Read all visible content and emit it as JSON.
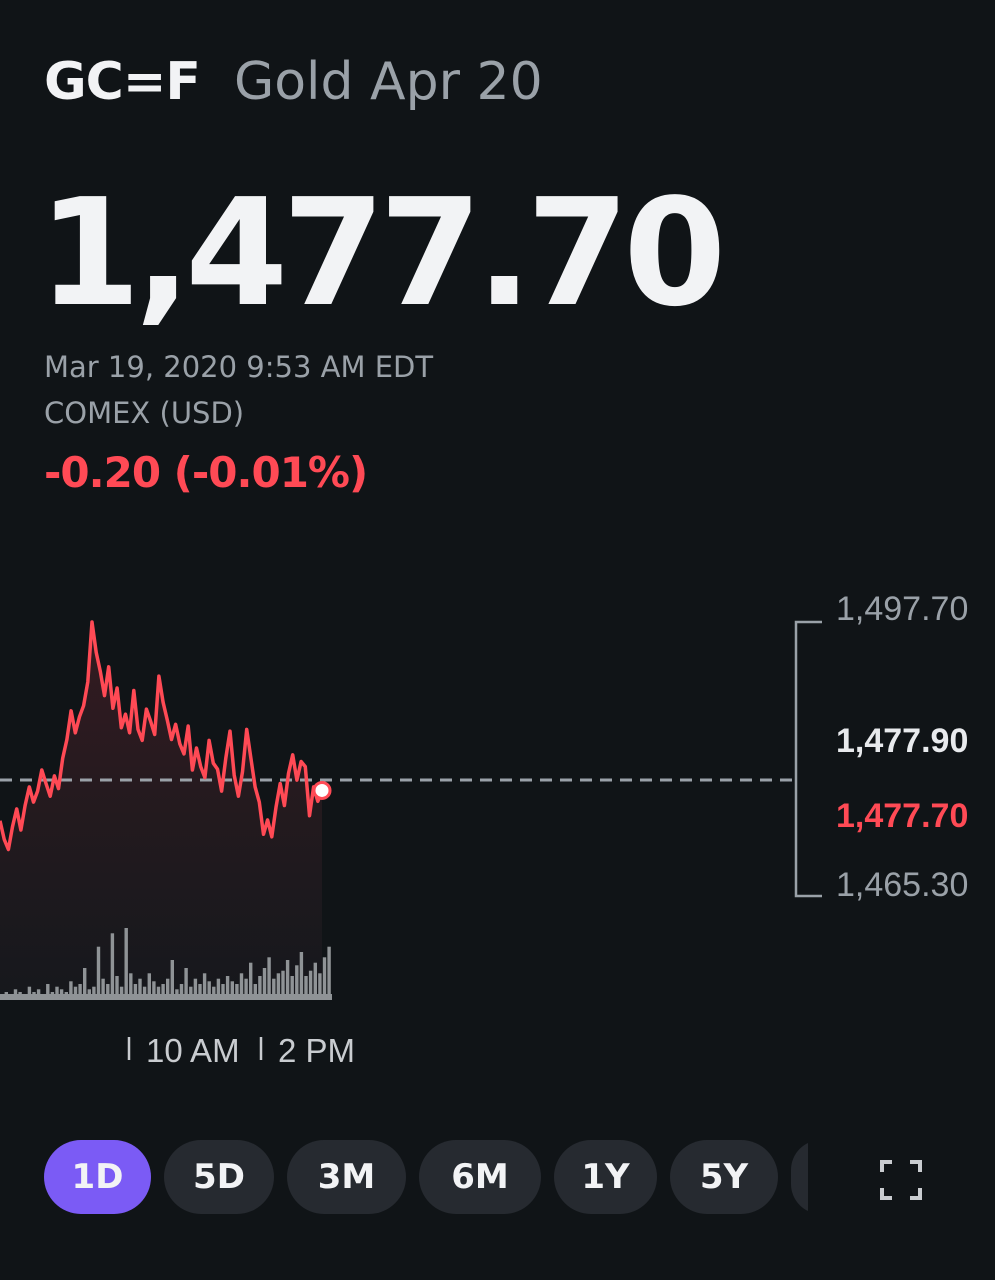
{
  "quote": {
    "symbol": "GC=F",
    "name": "Gold Apr 20",
    "price": "1,477.70",
    "timestamp": "Mar 19, 2020 9:53 AM EDT",
    "exchange": "COMEX (USD)",
    "change": "-0.20 (-0.01%)"
  },
  "chart": {
    "y_labels": {
      "high": "1,497.70",
      "prev_close": "1,477.90",
      "current": "1,477.70",
      "low": "1,465.30"
    },
    "x_labels": [
      "10 AM",
      "2 PM"
    ]
  },
  "chart_data": {
    "type": "line",
    "ylim": [
      1465.3,
      1497.7
    ],
    "reference_line": 1477.9,
    "series": [
      {
        "values": [
          1474.2,
          1472.0,
          1470.8,
          1473.5,
          1475.6,
          1473.1,
          1476.0,
          1478.2,
          1476.4,
          1477.7,
          1480.2,
          1478.6,
          1477.1,
          1479.5,
          1478.0,
          1481.6,
          1483.8,
          1487.2,
          1484.6,
          1486.5,
          1487.8,
          1490.6,
          1497.7,
          1494.1,
          1491.8,
          1489.0,
          1492.4,
          1487.5,
          1489.9,
          1485.2,
          1486.8,
          1484.6,
          1489.6,
          1485.0,
          1483.7,
          1487.4,
          1486.0,
          1484.4,
          1491.3,
          1488.2,
          1486.1,
          1483.8,
          1485.6,
          1483.3,
          1482.1,
          1485.4,
          1480.2,
          1482.8,
          1480.6,
          1479.3,
          1483.7,
          1481.0,
          1480.3,
          1477.7,
          1481.6,
          1484.8,
          1479.6,
          1477.1,
          1480.0,
          1485.0,
          1481.6,
          1478.2,
          1476.4,
          1472.6,
          1474.3,
          1472.3,
          1475.8,
          1478.6,
          1476.0,
          1479.8,
          1482.0,
          1479.0,
          1481.2,
          1480.6,
          1474.8,
          1478.2,
          1476.5,
          1477.7
        ]
      }
    ],
    "volume": [
      2,
      3,
      1,
      4,
      3,
      2,
      5,
      3,
      4,
      2,
      6,
      3,
      5,
      4,
      3,
      7,
      5,
      6,
      12,
      4,
      5,
      20,
      8,
      6,
      25,
      9,
      5,
      27,
      10,
      6,
      8,
      5,
      10,
      7,
      5,
      6,
      8,
      15,
      4,
      6,
      12,
      5,
      8,
      6,
      10,
      7,
      5,
      8,
      6,
      9,
      7,
      6,
      10,
      8,
      14,
      6,
      9,
      12,
      16,
      8,
      10,
      11,
      15,
      9,
      13,
      18,
      9,
      11,
      14,
      10,
      16,
      20
    ]
  },
  "ranges": [
    {
      "label": "1D",
      "active": true
    },
    {
      "label": "5D",
      "active": false
    },
    {
      "label": "3M",
      "active": false
    },
    {
      "label": "6M",
      "active": false
    },
    {
      "label": "1Y",
      "active": false
    },
    {
      "label": "5Y",
      "active": false
    },
    {
      "label": "",
      "active": false
    }
  ],
  "icons": {
    "fullscreen": "fullscreen-icon"
  },
  "colors": {
    "background": "#101417",
    "negative": "#ff4a55",
    "accent": "#7b5bf5",
    "muted": "#9aa1a8"
  }
}
